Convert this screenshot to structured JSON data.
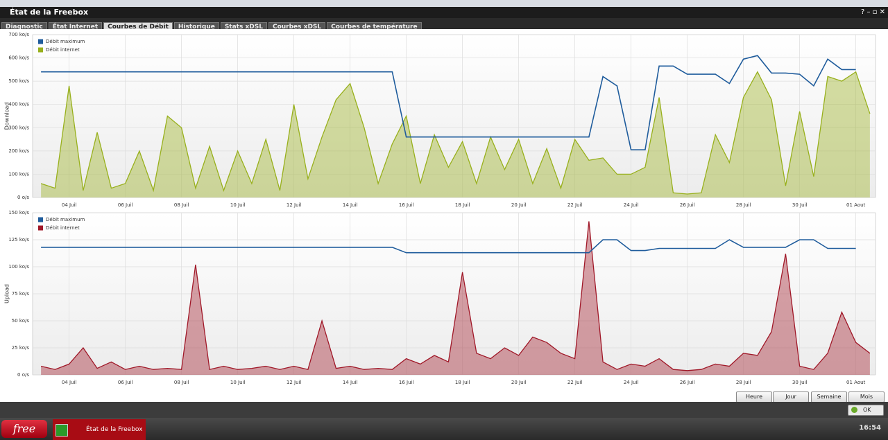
{
  "window": {
    "title": "État de la Freebox",
    "tabs": [
      "Diagnostic",
      "État Internet",
      "Courbes de Débit",
      "Historique",
      "Stats xDSL",
      "Courbes xDSL",
      "Courbes de température"
    ],
    "active_tab": 2
  },
  "buttons": [
    "Heure",
    "Jour",
    "Semaine",
    "Mois"
  ],
  "ok": "OK",
  "taskbar": {
    "logo": "free",
    "task": "État de la Freebox",
    "time": "16:54"
  },
  "chart_data": [
    {
      "type": "line",
      "axis_label": "Download",
      "legend": "top-left",
      "grid": true,
      "x": [
        3,
        3.5,
        4,
        4.5,
        5,
        5.5,
        6,
        6.5,
        7,
        7.5,
        8,
        8.5,
        9,
        9.5,
        10,
        10.5,
        11,
        11.5,
        12,
        12.5,
        13,
        13.5,
        14,
        14.5,
        15,
        15.5,
        16,
        16.5,
        17,
        17.5,
        18,
        18.5,
        19,
        19.5,
        20,
        20.5,
        21,
        21.5,
        22,
        22.5,
        23,
        23.5,
        24,
        24.5,
        25,
        25.5,
        26,
        26.5,
        27,
        27.5,
        28,
        28.5,
        29,
        29.5,
        30,
        30.5,
        31,
        31.5,
        32,
        32.5
      ],
      "xlim": [
        2.7,
        32.7
      ],
      "xticks": [
        {
          "value": 4,
          "label": "04 Juil"
        },
        {
          "value": 6,
          "label": "06 Juil"
        },
        {
          "value": 8,
          "label": "08 Juil"
        },
        {
          "value": 10,
          "label": "10 Juil"
        },
        {
          "value": 12,
          "label": "12 Juil"
        },
        {
          "value": 14,
          "label": "14 Juil"
        },
        {
          "value": 16,
          "label": "16 Juil"
        },
        {
          "value": 18,
          "label": "18 Juil"
        },
        {
          "value": 20,
          "label": "20 Juil"
        },
        {
          "value": 22,
          "label": "22 Juil"
        },
        {
          "value": 24,
          "label": "24 Juil"
        },
        {
          "value": 26,
          "label": "26 Juil"
        },
        {
          "value": 28,
          "label": "28 Juil"
        },
        {
          "value": 30,
          "label": "30 Juil"
        },
        {
          "value": 32,
          "label": "01 Aout"
        }
      ],
      "ylim": [
        0,
        700
      ],
      "yticks": [
        {
          "value": 0,
          "label": "0 o/s"
        },
        {
          "value": 100,
          "label": "100 ko/s"
        },
        {
          "value": 200,
          "label": "200 ko/s"
        },
        {
          "value": 300,
          "label": "300 ko/s"
        },
        {
          "value": 400,
          "label": "400 ko/s"
        },
        {
          "value": 500,
          "label": "500 ko/s"
        },
        {
          "value": 600,
          "label": "600 ko/s"
        },
        {
          "value": 700,
          "label": "700 ko/s"
        }
      ],
      "series": [
        {
          "name": "Débit maximum",
          "color": "#1f5c9c",
          "area": false,
          "values": [
            540,
            540,
            540,
            540,
            540,
            540,
            540,
            540,
            540,
            540,
            540,
            540,
            540,
            540,
            540,
            540,
            540,
            540,
            540,
            540,
            540,
            540,
            540,
            540,
            540,
            540,
            260,
            260,
            260,
            260,
            260,
            260,
            260,
            260,
            260,
            260,
            260,
            260,
            260,
            260,
            520,
            480,
            205,
            205,
            565,
            565,
            530,
            530,
            530,
            490,
            595,
            610,
            535,
            535,
            530,
            480,
            595,
            550,
            550,
            null
          ]
        },
        {
          "name": "Débit internet",
          "color": "#98b01c",
          "area": true,
          "values": [
            60,
            40,
            480,
            30,
            280,
            40,
            60,
            200,
            30,
            350,
            300,
            40,
            220,
            30,
            200,
            60,
            250,
            30,
            400,
            80,
            260,
            420,
            490,
            300,
            60,
            230,
            350,
            60,
            270,
            130,
            240,
            60,
            260,
            120,
            250,
            60,
            210,
            40,
            250,
            160,
            170,
            100,
            100,
            130,
            430,
            20,
            15,
            20,
            270,
            150,
            430,
            540,
            420,
            50,
            370,
            90,
            520,
            500,
            540,
            360
          ]
        }
      ]
    },
    {
      "type": "line",
      "axis_label": "Upload",
      "legend": "top-left",
      "grid": true,
      "x": [
        3,
        3.5,
        4,
        4.5,
        5,
        5.5,
        6,
        6.5,
        7,
        7.5,
        8,
        8.5,
        9,
        9.5,
        10,
        10.5,
        11,
        11.5,
        12,
        12.5,
        13,
        13.5,
        14,
        14.5,
        15,
        15.5,
        16,
        16.5,
        17,
        17.5,
        18,
        18.5,
        19,
        19.5,
        20,
        20.5,
        21,
        21.5,
        22,
        22.5,
        23,
        23.5,
        24,
        24.5,
        25,
        25.5,
        26,
        26.5,
        27,
        27.5,
        28,
        28.5,
        29,
        29.5,
        30,
        30.5,
        31,
        31.5,
        32,
        32.5
      ],
      "xlim": [
        2.7,
        32.7
      ],
      "xticks": [
        {
          "value": 4,
          "label": "04 Juil"
        },
        {
          "value": 6,
          "label": "06 Juil"
        },
        {
          "value": 8,
          "label": "08 Juil"
        },
        {
          "value": 10,
          "label": "10 Juil"
        },
        {
          "value": 12,
          "label": "12 Juil"
        },
        {
          "value": 14,
          "label": "14 Juil"
        },
        {
          "value": 16,
          "label": "16 Juil"
        },
        {
          "value": 18,
          "label": "18 Juil"
        },
        {
          "value": 20,
          "label": "20 Juil"
        },
        {
          "value": 22,
          "label": "22 Juil"
        },
        {
          "value": 24,
          "label": "24 Juil"
        },
        {
          "value": 26,
          "label": "26 Juil"
        },
        {
          "value": 28,
          "label": "28 Juil"
        },
        {
          "value": 30,
          "label": "30 Juil"
        },
        {
          "value": 32,
          "label": "01 Aout"
        }
      ],
      "ylim": [
        0,
        150
      ],
      "yticks": [
        {
          "value": 0,
          "label": "0 o/s"
        },
        {
          "value": 25,
          "label": "25 ko/s"
        },
        {
          "value": 50,
          "label": "50 ko/s"
        },
        {
          "value": 75,
          "label": "75 ko/s"
        },
        {
          "value": 100,
          "label": "100 ko/s"
        },
        {
          "value": 125,
          "label": "125 ko/s"
        },
        {
          "value": 150,
          "label": "150 ko/s"
        }
      ],
      "series": [
        {
          "name": "Débit maximum",
          "color": "#1f5c9c",
          "area": false,
          "values": [
            118,
            118,
            118,
            118,
            118,
            118,
            118,
            118,
            118,
            118,
            118,
            118,
            118,
            118,
            118,
            118,
            118,
            118,
            118,
            118,
            118,
            118,
            118,
            118,
            118,
            118,
            113,
            113,
            113,
            113,
            113,
            113,
            113,
            113,
            113,
            113,
            113,
            113,
            113,
            113,
            125,
            125,
            115,
            115,
            117,
            117,
            117,
            117,
            117,
            125,
            118,
            118,
            118,
            118,
            125,
            125,
            117,
            117,
            117,
            null
          ]
        },
        {
          "name": "Débit internet",
          "color": "#a01828",
          "area": true,
          "values": [
            8,
            5,
            10,
            25,
            6,
            12,
            5,
            8,
            5,
            6,
            5,
            102,
            5,
            8,
            5,
            6,
            8,
            5,
            8,
            5,
            50,
            6,
            8,
            5,
            6,
            5,
            15,
            10,
            18,
            12,
            95,
            20,
            15,
            25,
            18,
            35,
            30,
            20,
            15,
            142,
            12,
            5,
            10,
            8,
            15,
            5,
            4,
            5,
            10,
            8,
            20,
            18,
            40,
            112,
            8,
            5,
            20,
            58,
            30,
            20
          ]
        }
      ]
    }
  ]
}
